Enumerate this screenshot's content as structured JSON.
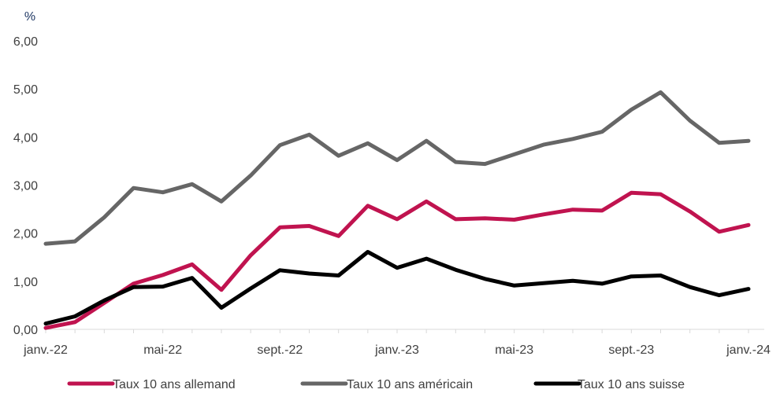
{
  "chart_data": {
    "type": "line",
    "ylabel": "%",
    "ylim": [
      0,
      6
    ],
    "y_ticks": [
      "0,00",
      "1,00",
      "2,00",
      "3,00",
      "4,00",
      "5,00",
      "6,00"
    ],
    "x_tick_labels": [
      "janv.-22",
      "mai-22",
      "sept.-22",
      "janv.-23",
      "mai-23",
      "sept.-23",
      "janv.-24"
    ],
    "x": [
      "janv.-22",
      "févr.-22",
      "mars-22",
      "avr.-22",
      "mai-22",
      "juin-22",
      "juil.-22",
      "août-22",
      "sept.-22",
      "oct.-22",
      "nov.-22",
      "déc.-22",
      "janv.-23",
      "févr.-23",
      "mars-23",
      "avr.-23",
      "mai-23",
      "juin-23",
      "juil.-23",
      "août-23",
      "sept.-23",
      "oct.-23",
      "nov.-23",
      "déc.-23",
      "janv.-24"
    ],
    "grid": false,
    "legend_position": "bottom",
    "series": [
      {
        "name": "Taux 10 ans allemand",
        "color": "#c0134f",
        "values": [
          0.03,
          0.15,
          0.55,
          0.95,
          1.13,
          1.35,
          0.82,
          1.54,
          2.12,
          2.15,
          1.94,
          2.57,
          2.29,
          2.66,
          2.29,
          2.31,
          2.28,
          2.39,
          2.49,
          2.47,
          2.84,
          2.81,
          2.45,
          2.03,
          2.17
        ]
      },
      {
        "name": "Taux 10 ans américain",
        "color": "#666666",
        "values": [
          1.78,
          1.83,
          2.33,
          2.94,
          2.85,
          3.02,
          2.66,
          3.2,
          3.83,
          4.05,
          3.61,
          3.87,
          3.52,
          3.92,
          3.48,
          3.44,
          3.64,
          3.84,
          3.96,
          4.11,
          4.57,
          4.93,
          4.34,
          3.88,
          3.92
        ]
      },
      {
        "name": "Taux 10 ans suisse",
        "color": "#000000",
        "values": [
          0.12,
          0.27,
          0.6,
          0.88,
          0.89,
          1.07,
          0.45,
          0.85,
          1.23,
          1.16,
          1.12,
          1.61,
          1.28,
          1.47,
          1.24,
          1.05,
          0.91,
          0.96,
          1.01,
          0.95,
          1.1,
          1.12,
          0.88,
          0.71,
          0.84
        ]
      }
    ]
  }
}
